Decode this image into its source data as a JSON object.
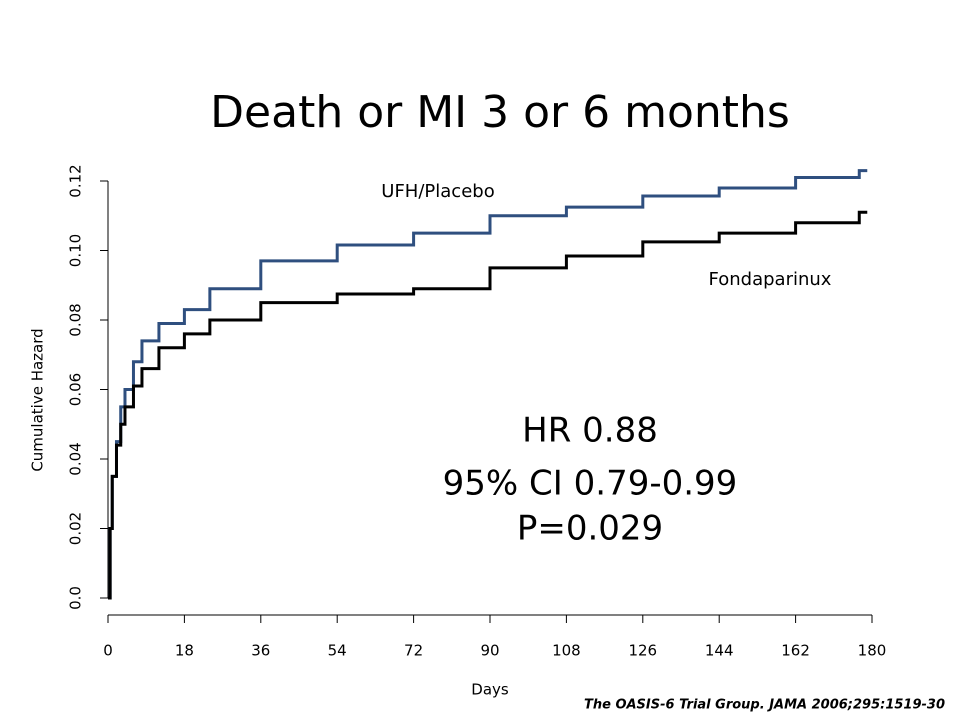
{
  "chart_data": {
    "type": "line",
    "title": "Death or MI 3 or 6 months",
    "xlabel": "Days",
    "ylabel": "Cumulative Hazard",
    "x": [
      0,
      0.5,
      1,
      2,
      3,
      4,
      6,
      8,
      12,
      18,
      24,
      36,
      54,
      72,
      90,
      108,
      126,
      144,
      162,
      177
    ],
    "series": [
      {
        "name": "UFH/Placebo",
        "color": "#2f4f7f",
        "values": [
          0,
          0.02,
          0.035,
          0.045,
          0.055,
          0.06,
          0.068,
          0.074,
          0.079,
          0.083,
          0.089,
          0.097,
          0.1016,
          0.105,
          0.11,
          0.1125,
          0.1157,
          0.118,
          0.121,
          0.123
        ]
      },
      {
        "name": "Fondaparinux",
        "color": "#000000",
        "values": [
          0,
          0.02,
          0.035,
          0.044,
          0.05,
          0.055,
          0.061,
          0.066,
          0.072,
          0.076,
          0.08,
          0.085,
          0.0875,
          0.089,
          0.095,
          0.0984,
          0.1025,
          0.105,
          0.108,
          0.111
        ]
      }
    ],
    "xlim": [
      0,
      180
    ],
    "xticks": [
      0,
      18,
      36,
      54,
      72,
      90,
      108,
      126,
      144,
      162,
      180
    ],
    "ylim": [
      0,
      0.12
    ],
    "yticks": [
      {
        "value": 0,
        "label": "0.0"
      },
      0.02,
      0.04,
      0.06,
      0.08,
      {
        "value": 0.1,
        "label": "0.10"
      },
      0.12
    ],
    "annotations": [
      "HR 0.88",
      "95% CI 0.79-0.99",
      "P=0.029"
    ],
    "source": "The OASIS-6 Trial Group. JAMA 2006;295:1519-30"
  }
}
